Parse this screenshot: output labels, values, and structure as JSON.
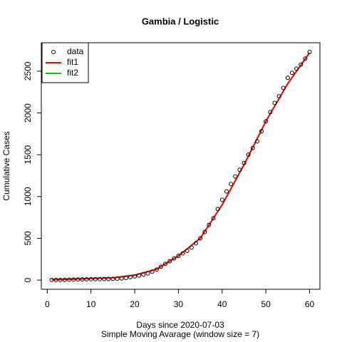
{
  "chart_data": {
    "type": "scatter",
    "title": "Gambia / Logistic",
    "xlabel": "Days since 2020-07-03",
    "subtitle": "Simple Moving Avarage (window size = 7)",
    "ylabel": "Cumulative Cases",
    "xlim": [
      -1.36,
      62.36
    ],
    "ylim": [
      -110,
      2840
    ],
    "xticks": [
      0,
      10,
      20,
      30,
      40,
      50,
      60
    ],
    "yticks": [
      0,
      500,
      1000,
      1500,
      2000,
      2500
    ],
    "legend": "top-left",
    "series": [
      {
        "name": "data",
        "color": "#000000",
        "mode": "points",
        "x": [
          1,
          2,
          3,
          4,
          5,
          6,
          7,
          8,
          9,
          10,
          11,
          12,
          13,
          14,
          15,
          16,
          17,
          18,
          19,
          20,
          21,
          22,
          23,
          24,
          25,
          26,
          27,
          28,
          29,
          30,
          31,
          32,
          33,
          34,
          35,
          36,
          37,
          38,
          39,
          40,
          41,
          42,
          43,
          44,
          45,
          46,
          47,
          48,
          49,
          50,
          51,
          52,
          53,
          54,
          55,
          56,
          57,
          58,
          59,
          60
        ],
        "values": [
          2,
          2,
          2,
          3,
          5,
          6,
          7,
          8,
          9,
          10,
          11,
          12,
          13,
          14,
          15,
          17,
          20,
          25,
          35,
          45,
          55,
          65,
          80,
          100,
          125,
          160,
          195,
          225,
          260,
          290,
          320,
          350,
          390,
          440,
          500,
          575,
          660,
          740,
          850,
          960,
          1060,
          1150,
          1240,
          1320,
          1400,
          1500,
          1580,
          1660,
          1780,
          1900,
          2010,
          2120,
          2200,
          2300,
          2420,
          2480,
          2530,
          2580,
          2650,
          2730
        ]
      },
      {
        "name": "fit1",
        "color": "#ff0000",
        "mode": "line",
        "x": [
          1,
          5,
          10,
          15,
          20,
          25,
          30,
          35,
          40,
          45,
          50,
          55,
          60
        ],
        "values": [
          5,
          10,
          18,
          28,
          60,
          130,
          290,
          500,
          900,
          1380,
          1900,
          2350,
          2720
        ]
      },
      {
        "name": "fit2",
        "color": "#00cd00",
        "mode": "line",
        "x": [
          1,
          5,
          10,
          15,
          20,
          25,
          30,
          35,
          40,
          45,
          50,
          55,
          60
        ],
        "values": [
          5,
          10,
          18,
          28,
          60,
          130,
          290,
          500,
          900,
          1380,
          1900,
          2350,
          2720
        ]
      }
    ]
  }
}
